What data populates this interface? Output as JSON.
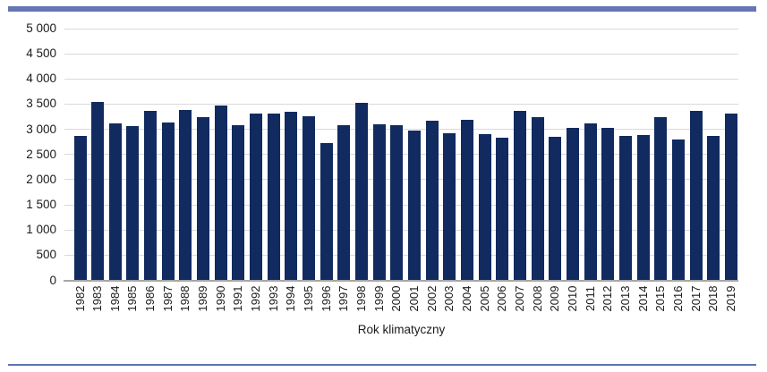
{
  "page": {
    "background": "#ffffff",
    "top_rule_color": "#6676b4",
    "bottom_rule_color": "#5b74b3"
  },
  "chart_data": {
    "type": "bar",
    "title": "",
    "xlabel": "Rok klimatyczny",
    "ylabel": "",
    "categories": [
      "1982",
      "1983",
      "1984",
      "1985",
      "1986",
      "1987",
      "1988",
      "1989",
      "1990",
      "1991",
      "1992",
      "1993",
      "1994",
      "1995",
      "1996",
      "1997",
      "1998",
      "1999",
      "2000",
      "2001",
      "2002",
      "2003",
      "2004",
      "2005",
      "2006",
      "2007",
      "2008",
      "2009",
      "2010",
      "2011",
      "2012",
      "2013",
      "2014",
      "2015",
      "2016",
      "2017",
      "2018",
      "2019"
    ],
    "values": [
      2870,
      3535,
      3120,
      3070,
      3360,
      3140,
      3375,
      3245,
      3465,
      3075,
      3310,
      3305,
      3345,
      3260,
      2730,
      3080,
      3530,
      3105,
      3085,
      2975,
      3170,
      2920,
      3180,
      2900,
      2825,
      3370,
      3245,
      2855,
      3030,
      3125,
      3035,
      2865,
      2885,
      3245,
      2790,
      3360,
      2860,
      3320
    ],
    "ylim": [
      0,
      5000
    ],
    "ytick_step": 500,
    "ytick_labels": [
      "0",
      "500",
      "1 000",
      "1 500",
      "2 000",
      "2 500",
      "3 000",
      "3 500",
      "4 000",
      "4 500",
      "5 000"
    ],
    "grid": "horizontal",
    "legend": "none",
    "bar_color": "#112a60",
    "gridline_color": "#d9d9d9",
    "axis_line_color": "#a6a6a6",
    "text_color": "#1a1a1a"
  }
}
